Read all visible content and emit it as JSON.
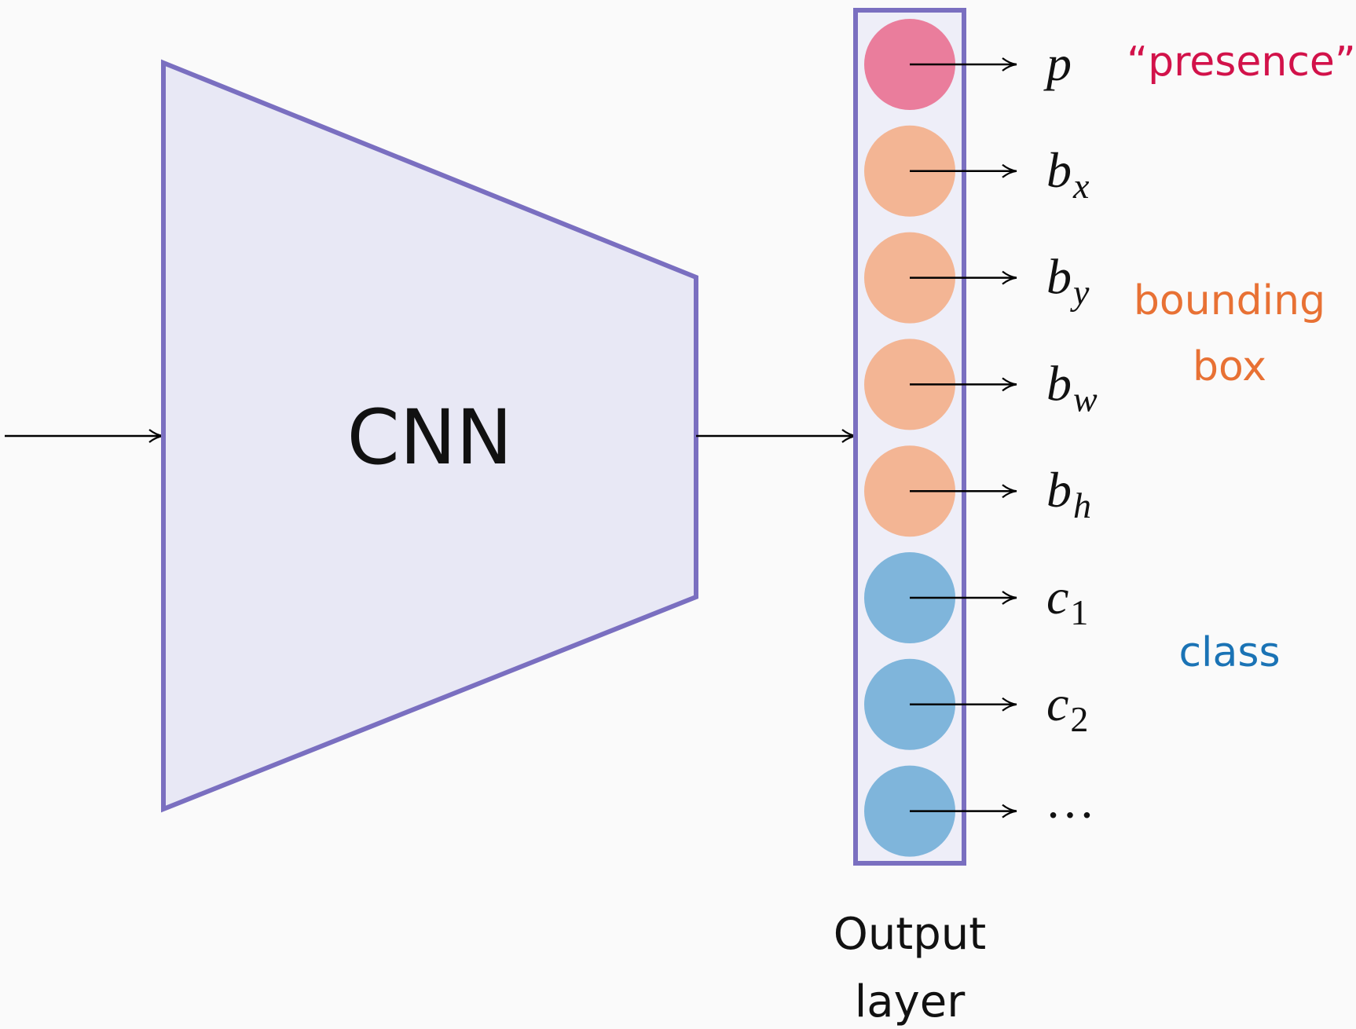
{
  "colors": {
    "background": "#fafafa",
    "frame": "#7a6fc0",
    "cnn_fill": "#e8e8f5",
    "output_fill": "#eeeef8",
    "presence": "#ea7d9c",
    "bbox": "#f3b594",
    "class": "#7fb5db",
    "presence_text": "#d2124a",
    "bbox_text": "#e87134",
    "class_text": "#1a73b5",
    "arrow": "#000000"
  },
  "cnn": {
    "label": "CNN"
  },
  "output_layer": {
    "label_line1": "Output",
    "label_line2": "layer"
  },
  "nodes": [
    {
      "group": "presence",
      "base": "p",
      "sub": "",
      "sub_upright": false
    },
    {
      "group": "bbox",
      "base": "b",
      "sub": "x",
      "sub_upright": false
    },
    {
      "group": "bbox",
      "base": "b",
      "sub": "y",
      "sub_upright": false
    },
    {
      "group": "bbox",
      "base": "b",
      "sub": "w",
      "sub_upright": false
    },
    {
      "group": "bbox",
      "base": "b",
      "sub": "h",
      "sub_upright": false
    },
    {
      "group": "class",
      "base": "c",
      "sub": "1",
      "sub_upright": true
    },
    {
      "group": "class",
      "base": "c",
      "sub": "2",
      "sub_upright": true
    },
    {
      "group": "class",
      "base": "…",
      "sub": "",
      "sub_upright": false
    }
  ],
  "group_labels": {
    "presence": "“presence”",
    "bbox_line1": "bounding",
    "bbox_line2": "box",
    "class": "class"
  }
}
